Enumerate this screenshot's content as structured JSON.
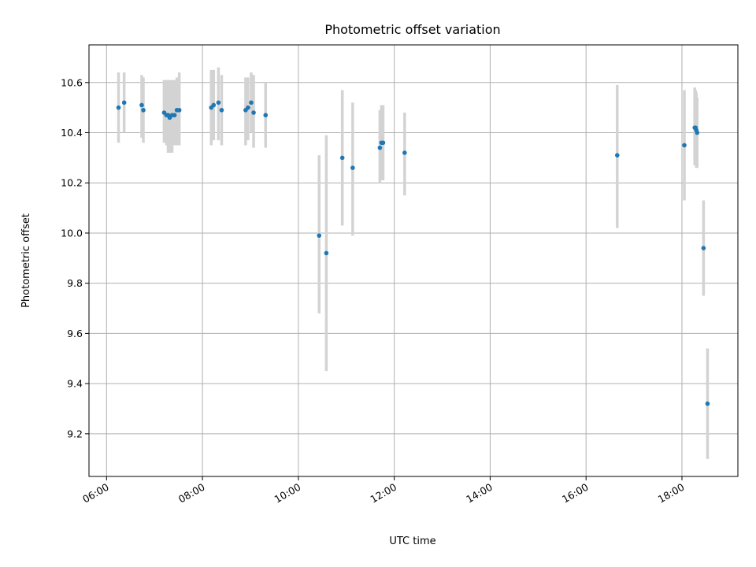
{
  "chart_data": {
    "type": "scatter",
    "title": "Photometric offset variation",
    "xlabel": "UTC time",
    "ylabel": "Photometric offset",
    "xlim": [
      "05:38",
      "19:10"
    ],
    "ylim": [
      9.03,
      10.75
    ],
    "x_ticks": [
      "06:00",
      "08:00",
      "10:00",
      "12:00",
      "14:00",
      "16:00",
      "18:00"
    ],
    "y_ticks": [
      9.2,
      9.4,
      9.6,
      9.8,
      10.0,
      10.2,
      10.4,
      10.6
    ],
    "grid": true,
    "legend": "none",
    "colors": {
      "points": "#1f77b4",
      "error_bars": "#d3d3d3"
    },
    "points": [
      {
        "x": "06:15",
        "y": 10.5,
        "ylow": 10.36,
        "yhigh": 10.64
      },
      {
        "x": "06:22",
        "y": 10.52,
        "ylow": 10.4,
        "yhigh": 10.64
      },
      {
        "x": "06:44",
        "y": 10.51,
        "ylow": 10.38,
        "yhigh": 10.63
      },
      {
        "x": "06:46",
        "y": 10.49,
        "ylow": 10.36,
        "yhigh": 10.62
      },
      {
        "x": "07:12",
        "y": 10.48,
        "ylow": 10.36,
        "yhigh": 10.61
      },
      {
        "x": "07:15",
        "y": 10.47,
        "ylow": 10.35,
        "yhigh": 10.61
      },
      {
        "x": "07:17",
        "y": 10.47,
        "ylow": 10.32,
        "yhigh": 10.61
      },
      {
        "x": "07:19",
        "y": 10.46,
        "ylow": 10.32,
        "yhigh": 10.61
      },
      {
        "x": "07:22",
        "y": 10.47,
        "ylow": 10.32,
        "yhigh": 10.61
      },
      {
        "x": "07:25",
        "y": 10.47,
        "ylow": 10.35,
        "yhigh": 10.61
      },
      {
        "x": "07:28",
        "y": 10.49,
        "ylow": 10.35,
        "yhigh": 10.62
      },
      {
        "x": "07:31",
        "y": 10.49,
        "ylow": 10.35,
        "yhigh": 10.64
      },
      {
        "x": "08:11",
        "y": 10.5,
        "ylow": 10.35,
        "yhigh": 10.65
      },
      {
        "x": "08:14",
        "y": 10.51,
        "ylow": 10.37,
        "yhigh": 10.65
      },
      {
        "x": "08:20",
        "y": 10.52,
        "ylow": 10.37,
        "yhigh": 10.66
      },
      {
        "x": "08:24",
        "y": 10.49,
        "ylow": 10.35,
        "yhigh": 10.63
      },
      {
        "x": "08:54",
        "y": 10.49,
        "ylow": 10.35,
        "yhigh": 10.62
      },
      {
        "x": "08:57",
        "y": 10.5,
        "ylow": 10.37,
        "yhigh": 10.62
      },
      {
        "x": "09:01",
        "y": 10.52,
        "ylow": 10.4,
        "yhigh": 10.64
      },
      {
        "x": "09:04",
        "y": 10.48,
        "ylow": 10.34,
        "yhigh": 10.63
      },
      {
        "x": "09:19",
        "y": 10.47,
        "ylow": 10.34,
        "yhigh": 10.6
      },
      {
        "x": "10:26",
        "y": 9.99,
        "ylow": 9.68,
        "yhigh": 10.31
      },
      {
        "x": "10:35",
        "y": 9.92,
        "ylow": 9.45,
        "yhigh": 10.39
      },
      {
        "x": "10:55",
        "y": 10.3,
        "ylow": 10.03,
        "yhigh": 10.57
      },
      {
        "x": "11:08",
        "y": 10.26,
        "ylow": 9.99,
        "yhigh": 10.52
      },
      {
        "x": "11:42",
        "y": 10.34,
        "ylow": 10.2,
        "yhigh": 10.49
      },
      {
        "x": "11:44",
        "y": 10.36,
        "ylow": 10.21,
        "yhigh": 10.51
      },
      {
        "x": "11:46",
        "y": 10.36,
        "ylow": 10.21,
        "yhigh": 10.51
      },
      {
        "x": "12:13",
        "y": 10.32,
        "ylow": 10.15,
        "yhigh": 10.48
      },
      {
        "x": "16:39",
        "y": 10.31,
        "ylow": 10.02,
        "yhigh": 10.59
      },
      {
        "x": "18:03",
        "y": 10.35,
        "ylow": 10.13,
        "yhigh": 10.57
      },
      {
        "x": "18:16",
        "y": 10.42,
        "ylow": 10.27,
        "yhigh": 10.58
      },
      {
        "x": "18:17",
        "y": 10.42,
        "ylow": 10.27,
        "yhigh": 10.57
      },
      {
        "x": "18:18",
        "y": 10.41,
        "ylow": 10.26,
        "yhigh": 10.56
      },
      {
        "x": "18:19",
        "y": 10.4,
        "ylow": 10.26,
        "yhigh": 10.54
      },
      {
        "x": "18:27",
        "y": 9.94,
        "ylow": 9.75,
        "yhigh": 10.13
      },
      {
        "x": "18:32",
        "y": 9.32,
        "ylow": 9.1,
        "yhigh": 9.54
      }
    ]
  }
}
